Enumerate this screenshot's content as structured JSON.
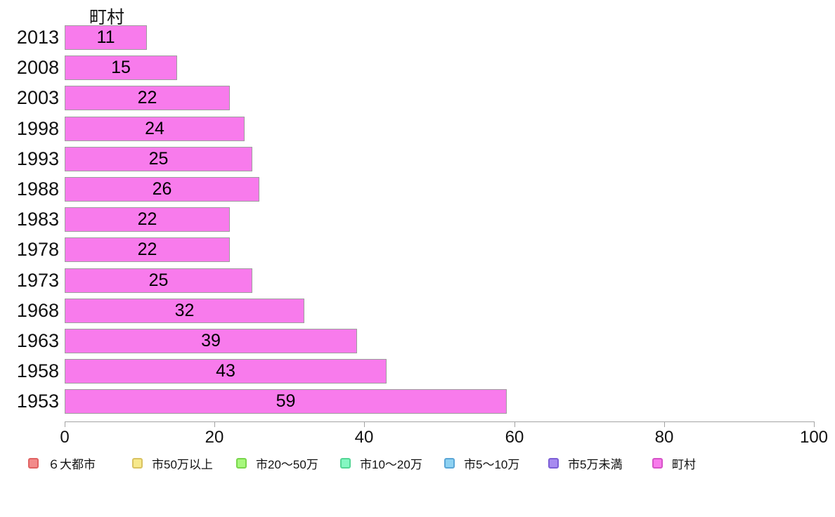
{
  "chart_data": {
    "type": "bar",
    "orientation": "horizontal",
    "title": "町村",
    "categories": [
      "2013",
      "2008",
      "2003",
      "1998",
      "1993",
      "1988",
      "1983",
      "1978",
      "1973",
      "1968",
      "1963",
      "1958",
      "1953"
    ],
    "values": [
      11,
      15,
      22,
      24,
      25,
      26,
      22,
      22,
      25,
      32,
      39,
      43,
      59
    ],
    "value_labels_inside_bars": true,
    "xlim": [
      0,
      100
    ],
    "x_ticks": [
      "0",
      "20",
      "40",
      "60",
      "80",
      "100"
    ],
    "x_tick_values": [
      0,
      20,
      40,
      60,
      80,
      100
    ],
    "grid": false,
    "bar_color": "#f87bec",
    "bar_border_color": "#9e9e9e",
    "axis_color": "#a3a3a3",
    "text_color": "#111111",
    "legend_position": "bottom",
    "legend": [
      {
        "label": "６大都市",
        "color": "#f28b8b",
        "border": "#e06262"
      },
      {
        "label": "市50万以上",
        "color": "#f7e98c",
        "border": "#d9c261"
      },
      {
        "label": "市20〜50万",
        "color": "#a7f87d",
        "border": "#79d64c"
      },
      {
        "label": "市10〜20万",
        "color": "#85f7c2",
        "border": "#54d695"
      },
      {
        "label": "市5〜10万",
        "color": "#8ed2f2",
        "border": "#5aa6d6"
      },
      {
        "label": "市5万未満",
        "color": "#a78bf0",
        "border": "#7c5fd6"
      },
      {
        "label": "町村",
        "color": "#f87bec",
        "border": "#d653c7"
      }
    ]
  }
}
